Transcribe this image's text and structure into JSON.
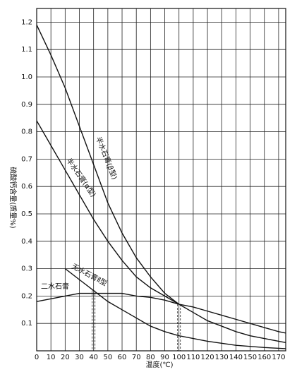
{
  "chart_data": {
    "type": "line",
    "x_label": "温度(℃)",
    "y_label": "硫酸钙含量(质量%)",
    "xlim": [
      0,
      175
    ],
    "ylim": [
      0,
      1.25
    ],
    "xticks": [
      0,
      10,
      20,
      30,
      40,
      50,
      60,
      70,
      80,
      90,
      100,
      110,
      120,
      130,
      140,
      150,
      160,
      170
    ],
    "yticks": [
      0.1,
      0.2,
      0.3,
      0.4,
      0.5,
      0.6,
      0.7,
      0.8,
      0.9,
      {
        "value": 1,
        "label": "1.0"
      },
      1.1,
      1.2
    ],
    "grid": true,
    "series": [
      {
        "name": "半水石膏(β型)",
        "color": "#111111",
        "x": [
          0,
          10,
          20,
          30,
          40,
          50,
          60,
          70,
          80,
          90,
          100
        ],
        "values": [
          1.19,
          1.08,
          0.96,
          0.82,
          0.68,
          0.54,
          0.43,
          0.34,
          0.27,
          0.21,
          0.17
        ]
      },
      {
        "name": "半水石膏(α型)",
        "color": "#111111",
        "x": [
          0,
          10,
          20,
          30,
          40,
          50,
          60,
          70,
          80,
          90,
          100,
          110,
          120,
          130,
          140,
          150,
          160,
          170,
          175
        ],
        "values": [
          0.84,
          0.75,
          0.66,
          0.57,
          0.48,
          0.4,
          0.33,
          0.27,
          0.23,
          0.2,
          0.17,
          0.14,
          0.11,
          0.09,
          0.07,
          0.055,
          0.045,
          0.035,
          0.03
        ]
      },
      {
        "name": "无水石膏Ⅱ型",
        "color": "#111111",
        "x": [
          20,
          30,
          40,
          50,
          60,
          70,
          80,
          90,
          100,
          120,
          140,
          160,
          175
        ],
        "values": [
          0.3,
          0.26,
          0.22,
          0.18,
          0.15,
          0.12,
          0.09,
          0.07,
          0.055,
          0.035,
          0.02,
          0.012,
          0.008
        ]
      },
      {
        "name": "二水石膏",
        "color": "#111111",
        "x": [
          0,
          10,
          20,
          30,
          40,
          50,
          60,
          70,
          80,
          90,
          100,
          110,
          120,
          130,
          140,
          150,
          160,
          170,
          175
        ],
        "values": [
          0.18,
          0.19,
          0.2,
          0.21,
          0.21,
          0.21,
          0.21,
          0.2,
          0.195,
          0.185,
          0.17,
          0.16,
          0.145,
          0.13,
          0.115,
          0.1,
          0.085,
          0.07,
          0.065
        ]
      }
    ],
    "guides": [
      {
        "x": 40,
        "y": 0.22
      },
      {
        "x": 100,
        "y": 0.17
      }
    ]
  }
}
